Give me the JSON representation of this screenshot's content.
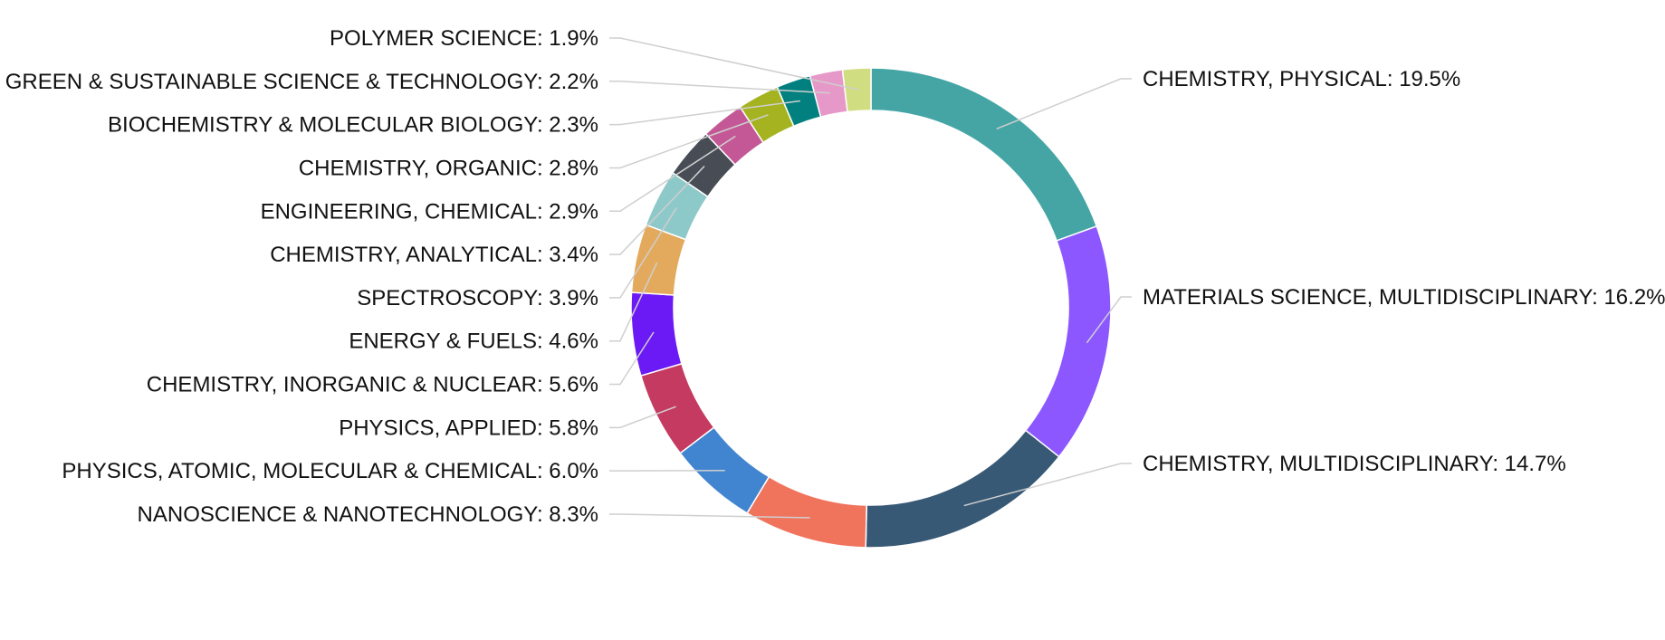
{
  "chart_data": {
    "type": "pie",
    "donut": true,
    "label_format": "{name}: {value}%",
    "slices": [
      {
        "name": "CHEMISTRY, PHYSICAL",
        "value": 19.5,
        "color": "#45a5a5"
      },
      {
        "name": "MATERIALS SCIENCE, MULTIDISCIPLINARY",
        "value": 16.2,
        "color": "#8c57ff"
      },
      {
        "name": "CHEMISTRY, MULTIDISCIPLINARY",
        "value": 14.7,
        "color": "#385975"
      },
      {
        "name": "NANOSCIENCE & NANOTECHNOLOGY",
        "value": 8.3,
        "color": "#f0735c"
      },
      {
        "name": "PHYSICS, ATOMIC, MOLECULAR & CHEMICAL",
        "value": 6.0,
        "color": "#4185d0"
      },
      {
        "name": "PHYSICS, APPLIED",
        "value": 5.8,
        "color": "#c53a60"
      },
      {
        "name": "CHEMISTRY, INORGANIC & NUCLEAR",
        "value": 5.6,
        "color": "#6b19f5"
      },
      {
        "name": "ENERGY & FUELS",
        "value": 4.6,
        "color": "#e3aa5d"
      },
      {
        "name": "SPECTROSCOPY",
        "value": 3.9,
        "color": "#8ec9c9"
      },
      {
        "name": "CHEMISTRY, ANALYTICAL",
        "value": 3.4,
        "color": "#474c55"
      },
      {
        "name": "ENGINEERING, CHEMICAL",
        "value": 2.9,
        "color": "#c45896"
      },
      {
        "name": "CHEMISTRY, ORGANIC",
        "value": 2.8,
        "color": "#a4b31f"
      },
      {
        "name": "BIOCHEMISTRY & MOLECULAR BIOLOGY",
        "value": 2.3,
        "color": "#028080"
      },
      {
        "name": "GREEN & SUSTAINABLE SCIENCE & TECHNOLOGY",
        "value": 2.2,
        "color": "#e699c9"
      },
      {
        "name": "POLYMER SCIENCE",
        "value": 1.9,
        "color": "#d1dd81"
      }
    ]
  }
}
